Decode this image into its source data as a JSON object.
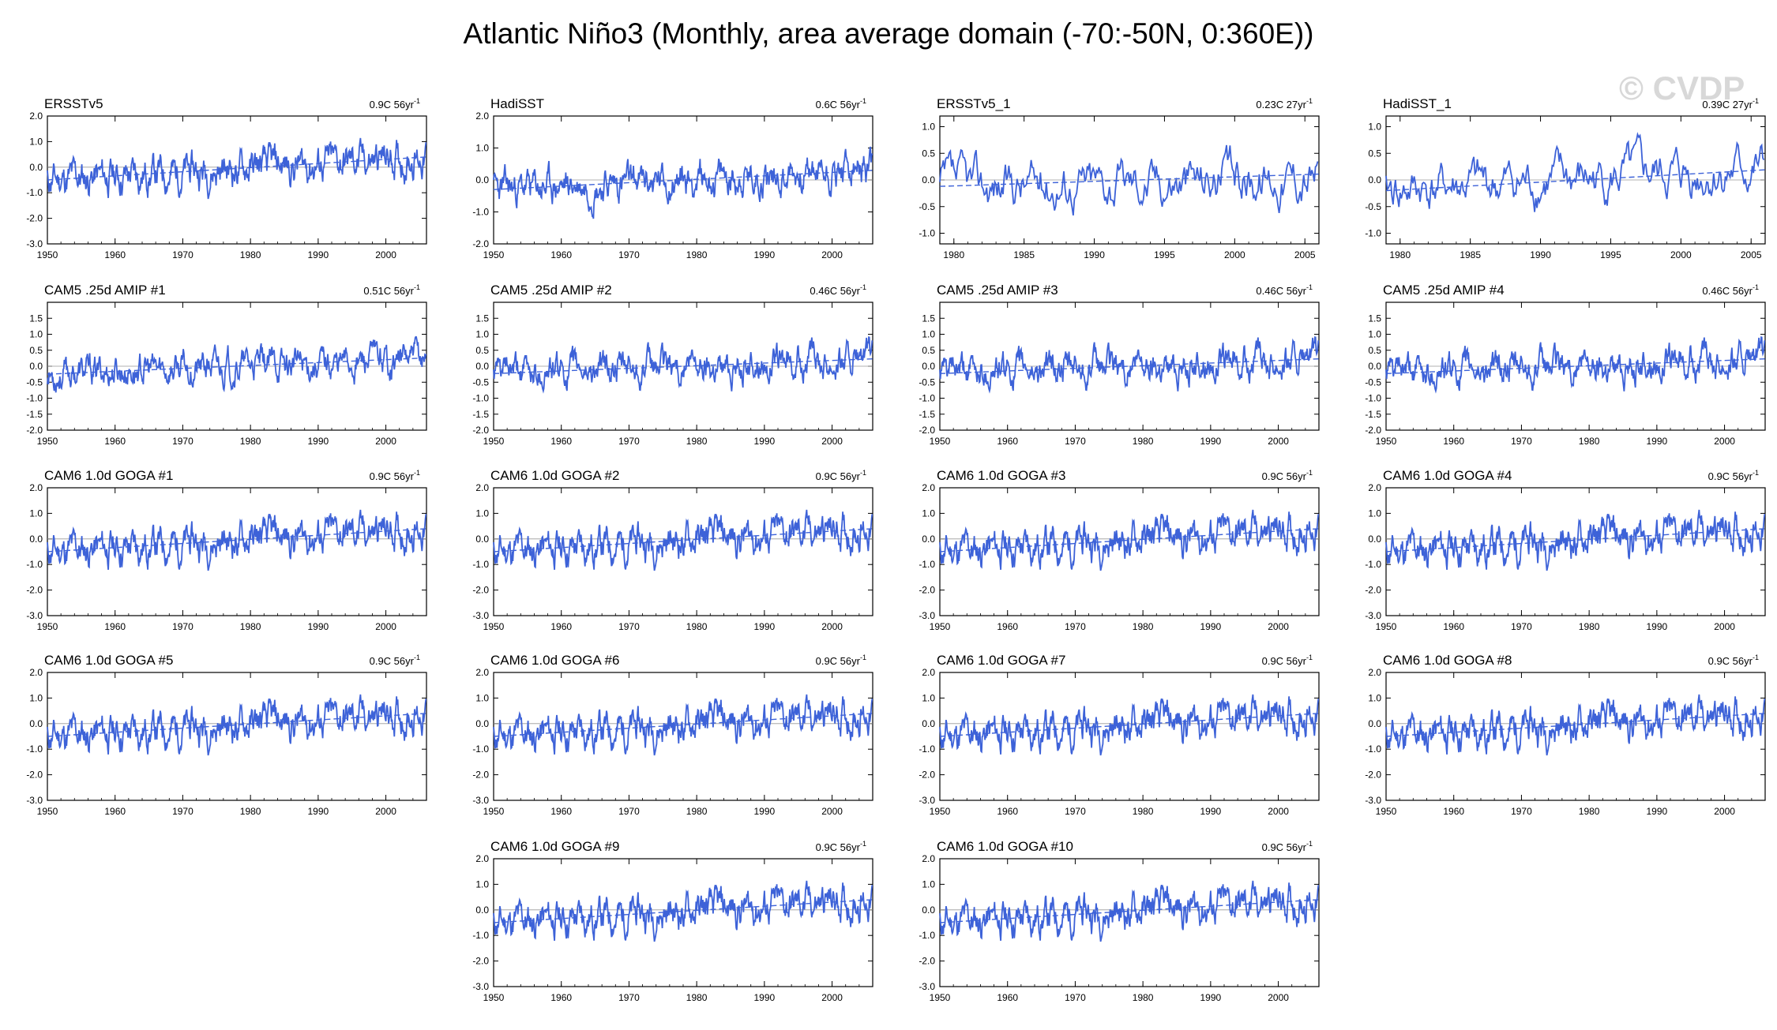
{
  "title": "Atlantic Niño3 (Monthly, area average domain (-70:-50N, 0:360E))",
  "watermark": "© CVDP",
  "line_color": "#3d62d8",
  "chart_data": [
    {
      "type": "line",
      "title": "ERSSTv5",
      "trend_label": "0.9C 56yr",
      "trend_sup": "-1",
      "x_range": [
        1950,
        2006
      ],
      "ylim": [
        -3.0,
        2.0
      ],
      "yticks": [
        "2.0",
        "1.0",
        "0.0",
        "-1.0",
        "-2.0",
        "-3.0"
      ],
      "xticks": [
        "1950",
        "1960",
        "1970",
        "1980",
        "1990",
        "2000"
      ],
      "trend_line": [
        -0.5,
        0.4
      ],
      "seed": 11,
      "amp": 0.8
    },
    {
      "type": "line",
      "title": "HadiSST",
      "trend_label": "0.6C 56yr",
      "trend_sup": "-1",
      "x_range": [
        1950,
        2006
      ],
      "ylim": [
        -2.0,
        2.0
      ],
      "yticks": [
        "2.0",
        "1.0",
        "0.0",
        "-1.0",
        "-2.0"
      ],
      "xticks": [
        "1950",
        "1960",
        "1970",
        "1980",
        "1990",
        "2000"
      ],
      "trend_line": [
        -0.3,
        0.3
      ],
      "seed": 23,
      "amp": 0.6
    },
    {
      "type": "line",
      "title": "ERSSTv5_1",
      "trend_label": "0.23C 27yr",
      "trend_sup": "-1",
      "x_range": [
        1979,
        2006
      ],
      "ylim": [
        -1.2,
        1.2
      ],
      "yticks": [
        "1.0",
        "0.5",
        "0.0",
        "-0.5",
        "-1.0"
      ],
      "xticks": [
        "1980",
        "1985",
        "1990",
        "1995",
        "2000",
        "2005"
      ],
      "trend_line": [
        -0.12,
        0.11
      ],
      "seed": 37,
      "amp": 0.5
    },
    {
      "type": "line",
      "title": "HadiSST_1",
      "trend_label": "0.39C 27yr",
      "trend_sup": "-1",
      "x_range": [
        1979,
        2006
      ],
      "ylim": [
        -1.2,
        1.2
      ],
      "yticks": [
        "1.0",
        "0.5",
        "0.0",
        "-0.5",
        "-1.0"
      ],
      "xticks": [
        "1980",
        "1985",
        "1990",
        "1995",
        "2000",
        "2005"
      ],
      "trend_line": [
        -0.2,
        0.19
      ],
      "seed": 41,
      "amp": 0.5
    },
    {
      "type": "line",
      "title": "CAM5 .25d AMIP #1",
      "trend_label": "0.51C 56yr",
      "trend_sup": "-1",
      "x_range": [
        1950,
        2006
      ],
      "ylim": [
        -2.0,
        2.0
      ],
      "yticks": [
        "1.5",
        "1.0",
        "0.5",
        "0.0",
        "-0.5",
        "-1.0",
        "-1.5",
        "-2.0"
      ],
      "xticks": [
        "1950",
        "1960",
        "1970",
        "1980",
        "1990",
        "2000"
      ],
      "trend_line": [
        -0.25,
        0.26
      ],
      "seed": 53,
      "amp": 0.55
    },
    {
      "type": "line",
      "title": "CAM5 .25d AMIP #2",
      "trend_label": "0.46C 56yr",
      "trend_sup": "-1",
      "x_range": [
        1950,
        2006
      ],
      "ylim": [
        -2.0,
        2.0
      ],
      "yticks": [
        "1.5",
        "1.0",
        "0.5",
        "0.0",
        "-0.5",
        "-1.0",
        "-1.5",
        "-2.0"
      ],
      "xticks": [
        "1950",
        "1960",
        "1970",
        "1980",
        "1990",
        "2000"
      ],
      "trend_line": [
        -0.23,
        0.23
      ],
      "seed": 61,
      "amp": 0.55
    },
    {
      "type": "line",
      "title": "CAM5 .25d AMIP #3",
      "trend_label": "0.46C 56yr",
      "trend_sup": "-1",
      "x_range": [
        1950,
        2006
      ],
      "ylim": [
        -2.0,
        2.0
      ],
      "yticks": [
        "1.5",
        "1.0",
        "0.5",
        "0.0",
        "-0.5",
        "-1.0",
        "-1.5",
        "-2.0"
      ],
      "xticks": [
        "1950",
        "1960",
        "1970",
        "1980",
        "1990",
        "2000"
      ],
      "trend_line": [
        -0.23,
        0.23
      ],
      "seed": 61,
      "amp": 0.55
    },
    {
      "type": "line",
      "title": "CAM5 .25d AMIP #4",
      "trend_label": "0.46C 56yr",
      "trend_sup": "-1",
      "x_range": [
        1950,
        2006
      ],
      "ylim": [
        -2.0,
        2.0
      ],
      "yticks": [
        "1.5",
        "1.0",
        "0.5",
        "0.0",
        "-0.5",
        "-1.0",
        "-1.5",
        "-2.0"
      ],
      "xticks": [
        "1950",
        "1960",
        "1970",
        "1980",
        "1990",
        "2000"
      ],
      "trend_line": [
        -0.23,
        0.23
      ],
      "seed": 61,
      "amp": 0.55
    },
    {
      "type": "line",
      "title": "CAM6 1.0d GOGA #1",
      "trend_label": "0.9C 56yr",
      "trend_sup": "-1",
      "x_range": [
        1950,
        2006
      ],
      "ylim": [
        -3.0,
        2.0
      ],
      "yticks": [
        "2.0",
        "1.0",
        "0.0",
        "-1.0",
        "-2.0",
        "-3.0"
      ],
      "xticks": [
        "1950",
        "1960",
        "1970",
        "1980",
        "1990",
        "2000"
      ],
      "trend_line": [
        -0.5,
        0.4
      ],
      "seed": 11,
      "amp": 0.8
    },
    {
      "type": "line",
      "title": "CAM6 1.0d GOGA #2",
      "trend_label": "0.9C 56yr",
      "trend_sup": "-1",
      "x_range": [
        1950,
        2006
      ],
      "ylim": [
        -3.0,
        2.0
      ],
      "yticks": [
        "2.0",
        "1.0",
        "0.0",
        "-1.0",
        "-2.0",
        "-3.0"
      ],
      "xticks": [
        "1950",
        "1960",
        "1970",
        "1980",
        "1990",
        "2000"
      ],
      "trend_line": [
        -0.5,
        0.4
      ],
      "seed": 11,
      "amp": 0.8
    },
    {
      "type": "line",
      "title": "CAM6 1.0d GOGA #3",
      "trend_label": "0.9C 56yr",
      "trend_sup": "-1",
      "x_range": [
        1950,
        2006
      ],
      "ylim": [
        -3.0,
        2.0
      ],
      "yticks": [
        "2.0",
        "1.0",
        "0.0",
        "-1.0",
        "-2.0",
        "-3.0"
      ],
      "xticks": [
        "1950",
        "1960",
        "1970",
        "1980",
        "1990",
        "2000"
      ],
      "trend_line": [
        -0.5,
        0.4
      ],
      "seed": 11,
      "amp": 0.8
    },
    {
      "type": "line",
      "title": "CAM6 1.0d GOGA #4",
      "trend_label": "0.9C 56yr",
      "trend_sup": "-1",
      "x_range": [
        1950,
        2006
      ],
      "ylim": [
        -3.0,
        2.0
      ],
      "yticks": [
        "2.0",
        "1.0",
        "0.0",
        "-1.0",
        "-2.0",
        "-3.0"
      ],
      "xticks": [
        "1950",
        "1960",
        "1970",
        "1980",
        "1990",
        "2000"
      ],
      "trend_line": [
        -0.5,
        0.4
      ],
      "seed": 11,
      "amp": 0.8
    },
    {
      "type": "line",
      "title": "CAM6 1.0d GOGA #5",
      "trend_label": "0.9C 56yr",
      "trend_sup": "-1",
      "x_range": [
        1950,
        2006
      ],
      "ylim": [
        -3.0,
        2.0
      ],
      "yticks": [
        "2.0",
        "1.0",
        "0.0",
        "-1.0",
        "-2.0",
        "-3.0"
      ],
      "xticks": [
        "1950",
        "1960",
        "1970",
        "1980",
        "1990",
        "2000"
      ],
      "trend_line": [
        -0.5,
        0.4
      ],
      "seed": 11,
      "amp": 0.8
    },
    {
      "type": "line",
      "title": "CAM6 1.0d GOGA #6",
      "trend_label": "0.9C 56yr",
      "trend_sup": "-1",
      "x_range": [
        1950,
        2006
      ],
      "ylim": [
        -3.0,
        2.0
      ],
      "yticks": [
        "2.0",
        "1.0",
        "0.0",
        "-1.0",
        "-2.0",
        "-3.0"
      ],
      "xticks": [
        "1950",
        "1960",
        "1970",
        "1980",
        "1990",
        "2000"
      ],
      "trend_line": [
        -0.5,
        0.4
      ],
      "seed": 11,
      "amp": 0.8
    },
    {
      "type": "line",
      "title": "CAM6 1.0d GOGA #7",
      "trend_label": "0.9C 56yr",
      "trend_sup": "-1",
      "x_range": [
        1950,
        2006
      ],
      "ylim": [
        -3.0,
        2.0
      ],
      "yticks": [
        "2.0",
        "1.0",
        "0.0",
        "-1.0",
        "-2.0",
        "-3.0"
      ],
      "xticks": [
        "1950",
        "1960",
        "1970",
        "1980",
        "1990",
        "2000"
      ],
      "trend_line": [
        -0.5,
        0.4
      ],
      "seed": 11,
      "amp": 0.8
    },
    {
      "type": "line",
      "title": "CAM6 1.0d GOGA #8",
      "trend_label": "0.9C 56yr",
      "trend_sup": "-1",
      "x_range": [
        1950,
        2006
      ],
      "ylim": [
        -3.0,
        2.0
      ],
      "yticks": [
        "2.0",
        "1.0",
        "0.0",
        "-1.0",
        "-2.0",
        "-3.0"
      ],
      "xticks": [
        "1950",
        "1960",
        "1970",
        "1980",
        "1990",
        "2000"
      ],
      "trend_line": [
        -0.5,
        0.4
      ],
      "seed": 11,
      "amp": 0.8
    },
    {
      "type": "line",
      "title": "CAM6 1.0d GOGA #9",
      "trend_label": "0.9C 56yr",
      "trend_sup": "-1",
      "x_range": [
        1950,
        2006
      ],
      "ylim": [
        -3.0,
        2.0
      ],
      "yticks": [
        "2.0",
        "1.0",
        "0.0",
        "-1.0",
        "-2.0",
        "-3.0"
      ],
      "xticks": [
        "1950",
        "1960",
        "1970",
        "1980",
        "1990",
        "2000"
      ],
      "trend_line": [
        -0.5,
        0.4
      ],
      "seed": 11,
      "amp": 0.8
    },
    {
      "type": "line",
      "title": "CAM6 1.0d GOGA #10",
      "trend_label": "0.9C 56yr",
      "trend_sup": "-1",
      "x_range": [
        1950,
        2006
      ],
      "ylim": [
        -3.0,
        2.0
      ],
      "yticks": [
        "2.0",
        "1.0",
        "0.0",
        "-1.0",
        "-2.0",
        "-3.0"
      ],
      "xticks": [
        "1950",
        "1960",
        "1970",
        "1980",
        "1990",
        "2000"
      ],
      "trend_line": [
        -0.5,
        0.4
      ],
      "seed": 11,
      "amp": 0.8
    }
  ]
}
